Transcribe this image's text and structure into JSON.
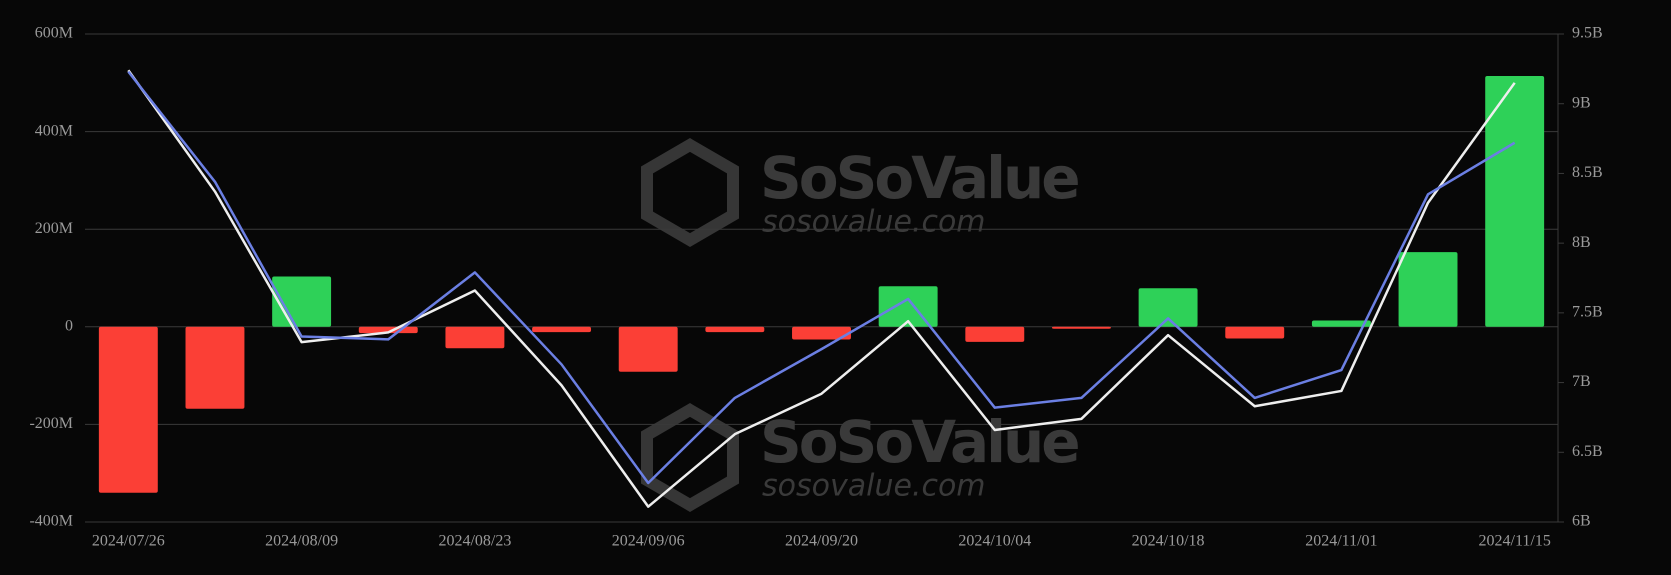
{
  "chart_data": {
    "type": "combo",
    "categories": [
      "2024/07/26",
      null,
      "2024/08/09",
      null,
      "2024/08/23",
      null,
      "2024/09/06",
      null,
      "2024/09/20",
      null,
      "2024/10/04",
      null,
      "2024/10/18",
      null,
      "2024/11/01",
      null,
      "2024/11/15"
    ],
    "series": [
      {
        "type": "bar",
        "positive_color": "#2ed158",
        "negative_color": "#fb3f36",
        "values": [
          -340,
          -168,
          103,
          -13,
          -44,
          -11,
          -92,
          -11,
          -26,
          83,
          -31,
          -4,
          79,
          -24,
          13,
          153,
          514
        ]
      },
      {
        "type": "line",
        "axis": "y2",
        "color": "#eeeeee",
        "values": [
          9.24,
          8.37,
          7.29,
          7.36,
          7.66,
          6.98,
          6.11,
          6.63,
          6.92,
          7.44,
          6.66,
          6.74,
          7.34,
          6.83,
          6.94,
          8.29,
          9.15
        ]
      },
      {
        "type": "line",
        "axis": "y2",
        "color": "#6b7fe3",
        "values": [
          9.23,
          8.44,
          7.33,
          7.31,
          7.79,
          7.13,
          6.28,
          6.89,
          7.24,
          7.6,
          6.82,
          6.89,
          7.46,
          6.89,
          7.09,
          8.35,
          8.72
        ]
      }
    ],
    "ylim": [
      -400,
      600
    ],
    "yticks": [
      {
        "value": -400,
        "label": "-400M"
      },
      {
        "value": -200,
        "label": "-200M"
      },
      {
        "value": 0,
        "label": "0"
      },
      {
        "value": 200,
        "label": "200M"
      },
      {
        "value": 400,
        "label": "400M"
      },
      {
        "value": 600,
        "label": "600M"
      }
    ],
    "y2lim": [
      6,
      9.5
    ],
    "y2ticks": [
      {
        "value": 6,
        "label": "6B"
      },
      {
        "value": 6.5,
        "label": "6.5B"
      },
      {
        "value": 7,
        "label": "7B"
      },
      {
        "value": 7.5,
        "label": "7.5B"
      },
      {
        "value": 8,
        "label": "8B"
      },
      {
        "value": 8.5,
        "label": "8.5B"
      },
      {
        "value": 9,
        "label": "9B"
      },
      {
        "value": 9.5,
        "label": "9.5B"
      }
    ],
    "grid": true,
    "watermark": {
      "brand": "SoSoValue",
      "url": "sosovalue.com"
    }
  }
}
